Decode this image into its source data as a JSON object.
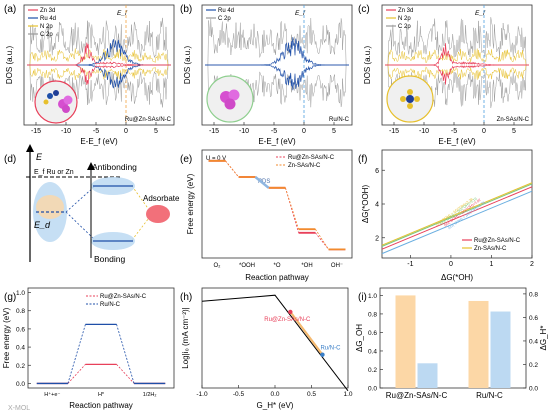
{
  "panel_labels": [
    "(a)",
    "(b)",
    "(c)",
    "(d)",
    "(e)",
    "(f)",
    "(g)",
    "(h)",
    "(i)"
  ],
  "watermark": "X-MOL",
  "chart_data": [
    {
      "panel": "a",
      "type": "line",
      "ylabel": "DOS (a.u.)",
      "xlabel": "E-E_f (eV)",
      "xticks": [
        -15,
        -10,
        -5,
        0,
        5
      ],
      "xlim": [
        -17,
        8
      ],
      "fermi_label": "E_f",
      "series": [
        {
          "name": "Zn 3d",
          "color": "#e8405a"
        },
        {
          "name": "Ru 4d",
          "color": "#1f4fa8"
        },
        {
          "name": "N 2p",
          "color": "#e7c02d"
        },
        {
          "name": "C 2p",
          "color": "#9a9a9a"
        }
      ],
      "annotation": "Ru@Zn-SAs/N-C"
    },
    {
      "panel": "b",
      "type": "line",
      "ylabel": "DOS (a.u.)",
      "xlabel": "E-E_f (eV)",
      "xticks": [
        -15,
        -10,
        -5,
        0,
        5
      ],
      "xlim": [
        -17,
        8
      ],
      "fermi_label": "E_f",
      "series": [
        {
          "name": "Ru 4d",
          "color": "#1f4fa8"
        },
        {
          "name": "C 2p",
          "color": "#9a9a9a"
        }
      ],
      "annotation": "Ru/N-C"
    },
    {
      "panel": "c",
      "type": "line",
      "ylabel": "DOS (a.u.)",
      "xlabel": "E-E_f (eV)",
      "xticks": [
        -15,
        -10,
        -5,
        0,
        5
      ],
      "xlim": [
        -17,
        8
      ],
      "fermi_label": "E_f",
      "series": [
        {
          "name": "Zn 3d",
          "color": "#e8405a"
        },
        {
          "name": "N 2p",
          "color": "#e7c02d"
        },
        {
          "name": "C 2p",
          "color": "#9a9a9a"
        }
      ],
      "annotation": "Zn-SAs/N-C"
    },
    {
      "panel": "d",
      "type": "diagram",
      "labels": {
        "E": "E",
        "Ef": "E_f Ru or Zn",
        "Ed": "E_d",
        "antibonding": "Antibonding",
        "bonding": "Bonding",
        "adsorbate": "Adsorbate"
      }
    },
    {
      "panel": "e",
      "type": "line",
      "ylabel": "Free energy (eV)",
      "xlabel": "Reaction pathway",
      "condition": "U = 0 V",
      "categories": [
        "O₂",
        "*OOH",
        "*O",
        "*OH",
        "OH⁻"
      ],
      "pds_label": "PDS",
      "series": [
        {
          "name": "Ru@Zn-SAs/N-C",
          "color": "#e8405a",
          "values": [
            0,
            -0.9,
            -1.5,
            -4.0,
            -4.92
          ]
        },
        {
          "name": "Zn-SAs/N-C",
          "color": "#f28a2e",
          "values": [
            0,
            -0.9,
            -1.5,
            -3.8,
            -4.92
          ]
        }
      ]
    },
    {
      "panel": "f",
      "type": "line",
      "ylabel": "ΔG(*OOH)",
      "xlabel": "ΔG(*OH)",
      "xticks": [
        -1,
        0,
        1,
        2
      ],
      "yticks": [
        2,
        4,
        6
      ],
      "xlim": [
        -1.7,
        2.0
      ],
      "ylim": [
        0.8,
        7.2
      ],
      "series": [
        {
          "name": "Ru@Zn-SAs/N-C",
          "color": "#e8405a"
        },
        {
          "name": "Zn-SAs/N-C",
          "color": "#e7c02d"
        }
      ],
      "line_annotations": [
        {
          "text": "ΔG(*OOH) = ΔG(*OH)+3.26",
          "color": "#e7c02d"
        },
        {
          "text": "ΔG(*OOH) = ΔG(*OH)+3.19",
          "color": "#7bc67b"
        },
        {
          "text": "ΔG(*OOH) = ΔG(*OH)+3.02",
          "color": "#e8405a"
        },
        {
          "text": "ΔG(*OOH) = ΔG(*OH)+2.76",
          "color": "#6aaee0"
        }
      ]
    },
    {
      "panel": "g",
      "type": "line",
      "ylabel": "Free energy (eV)",
      "xlabel": "Reaction pathway",
      "categories": [
        "H⁺+e⁻",
        "H*",
        "1/2H₂"
      ],
      "yticks": [
        0.0,
        0.2,
        0.4,
        0.6,
        0.8,
        1.0
      ],
      "ylim": [
        -0.05,
        1.05
      ],
      "series": [
        {
          "name": "Ru@Zn-SAs/N-C",
          "color": "#e8405a",
          "values": [
            0,
            0.21,
            0
          ]
        },
        {
          "name": "Ru/N-C",
          "color": "#1f4fa8",
          "values": [
            0,
            0.65,
            0
          ]
        }
      ]
    },
    {
      "panel": "h",
      "type": "scatter",
      "ylabel": "Log|i₀ (mA cm⁻²)|",
      "xlabel": "G_H* (eV)",
      "xticks": [
        -1.0,
        -0.5,
        0.0,
        0.5,
        1.0
      ],
      "xlim": [
        -1.0,
        1.0
      ],
      "ylim": [
        -15,
        3
      ],
      "volcano": {
        "x": [
          -1.0,
          0.0,
          1.0
        ],
        "y": [
          0.6,
          1.7,
          -15.5
        ]
      },
      "points": [
        {
          "name": "Ru@Zn-SAs/N-C",
          "x": 0.21,
          "y": -1.3,
          "color": "#e8405a"
        },
        {
          "name": "Ru/N-C",
          "x": 0.65,
          "y": -9.0,
          "color": "#3a7fc8"
        }
      ]
    },
    {
      "panel": "i",
      "type": "bar",
      "ylabel_left": "ΔG_OH",
      "ylabel_right": "ΔG_H*",
      "categories": [
        "Ru@Zn-SAs/N-C",
        "Ru/N-C"
      ],
      "yticks_left": [
        0.0,
        0.2,
        0.4,
        0.6,
        0.8,
        1.0
      ],
      "yticks_right": [
        0.0,
        0.2,
        0.4,
        0.6,
        0.8
      ],
      "series": [
        {
          "name": "ΔG_OH",
          "color": "#fcd7a6",
          "values": [
            1.0,
            0.94
          ]
        },
        {
          "name": "ΔG_H*",
          "color": "#bcd9f2",
          "values": [
            0.21,
            0.65
          ]
        }
      ]
    }
  ]
}
